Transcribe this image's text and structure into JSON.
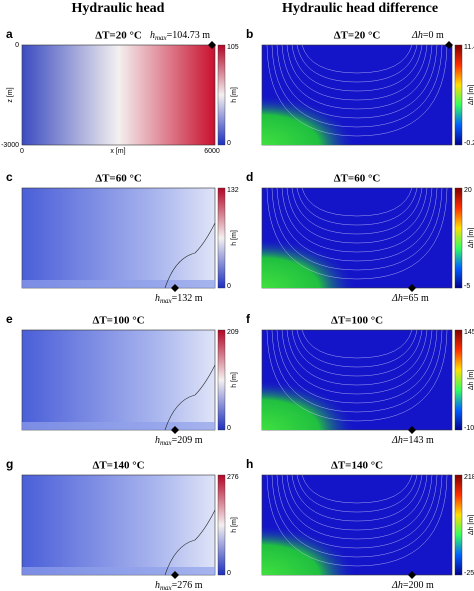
{
  "header": {
    "left": "Hydraulic head",
    "right": "Hydraulic head difference"
  },
  "axes": {
    "y_top": "0",
    "y_bottom": "-3000",
    "y_label": "z [m]",
    "x_left": "0",
    "x_label": "x [m]",
    "x_right": "6000"
  },
  "colorbar_labels": {
    "left": "h [m]",
    "right": "Δh [m]"
  },
  "panels": [
    {
      "label": "a",
      "title": "ΔT=20 °C",
      "symbol": "h",
      "sub": "max",
      "text": "=104.73 m",
      "cmax": "105",
      "cmin": "0"
    },
    {
      "label": "b",
      "title": "ΔT=20 °C",
      "symbol": "Δh",
      "sub": "",
      "text": "=0 m",
      "cmax": "11.4",
      "cmin": "-0.2"
    },
    {
      "label": "c",
      "title": "ΔT=60 °C",
      "symbol": "h",
      "sub": "max",
      "text": "=132 m",
      "cmax": "132",
      "cmin": "0"
    },
    {
      "label": "d",
      "title": "ΔT=60 °C",
      "symbol": "Δh",
      "sub": "",
      "text": "=65 m",
      "cmax": "20",
      "cmin": "-5"
    },
    {
      "label": "e",
      "title": "ΔT=100 °C",
      "symbol": "h",
      "sub": "max",
      "text": "=209 m",
      "cmax": "209",
      "cmin": "0"
    },
    {
      "label": "f",
      "title": "ΔT=100 °C",
      "symbol": "Δh",
      "sub": "",
      "text": "=143 m",
      "cmax": "145",
      "cmin": "-10"
    },
    {
      "label": "g",
      "title": "ΔT=140 °C",
      "symbol": "h",
      "sub": "max",
      "text": "=276 m",
      "cmax": "276",
      "cmin": "0"
    },
    {
      "label": "h",
      "title": "ΔT=140 °C",
      "symbol": "Δh",
      "sub": "",
      "text": "=200 m",
      "cmax": "218",
      "cmin": "-25"
    }
  ]
}
